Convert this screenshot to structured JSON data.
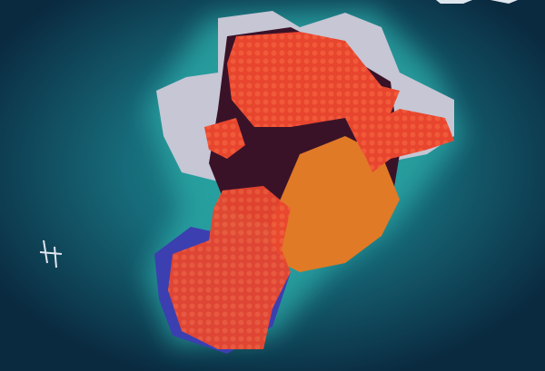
{
  "map": {
    "colors": {
      "ocean_deep": "#0b2f45",
      "ocean_shallow": "#1d7f85",
      "snow": "#c9c9d6",
      "dark_land": "#3a1228",
      "red_markers": "#e8452e",
      "desert": "#e07a26",
      "blue_region": "#3b3fb0"
    }
  }
}
